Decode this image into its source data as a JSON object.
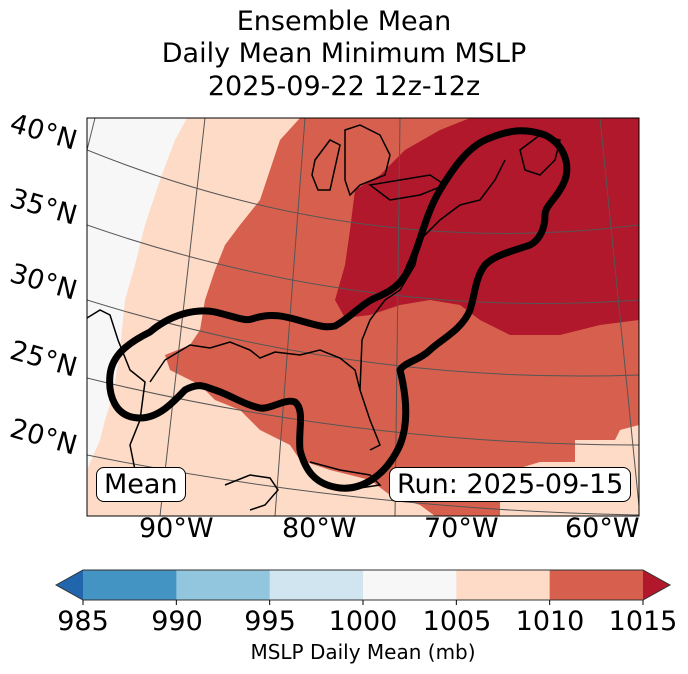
{
  "title": {
    "line1": "Ensemble Mean",
    "line2": "Daily Mean Minimum MSLP",
    "line3": "2025-09-22 12z-12z"
  },
  "map": {
    "lat_labels": [
      "40°N",
      "35°N",
      "30°N",
      "25°N",
      "20°N"
    ],
    "lon_labels": [
      "90°W",
      "80°W",
      "70°W",
      "60°W"
    ],
    "mean_label": "Mean",
    "run_label": "Run: 2025-09-15"
  },
  "colorbar": {
    "ticks": [
      "985",
      "990",
      "995",
      "1000",
      "1005",
      "1010",
      "1015"
    ],
    "label": "MSLP Daily Mean (mb)",
    "colors": {
      "under": "#2166ac",
      "985-990": "#4393c3",
      "990-995": "#92c5de",
      "995-1000": "#d1e5f0",
      "1000-1005": "#f7f7f7",
      "1005-1010": "#fddbc7",
      "1010-1015": "#d6604d",
      "over": "#b2182b"
    }
  }
}
